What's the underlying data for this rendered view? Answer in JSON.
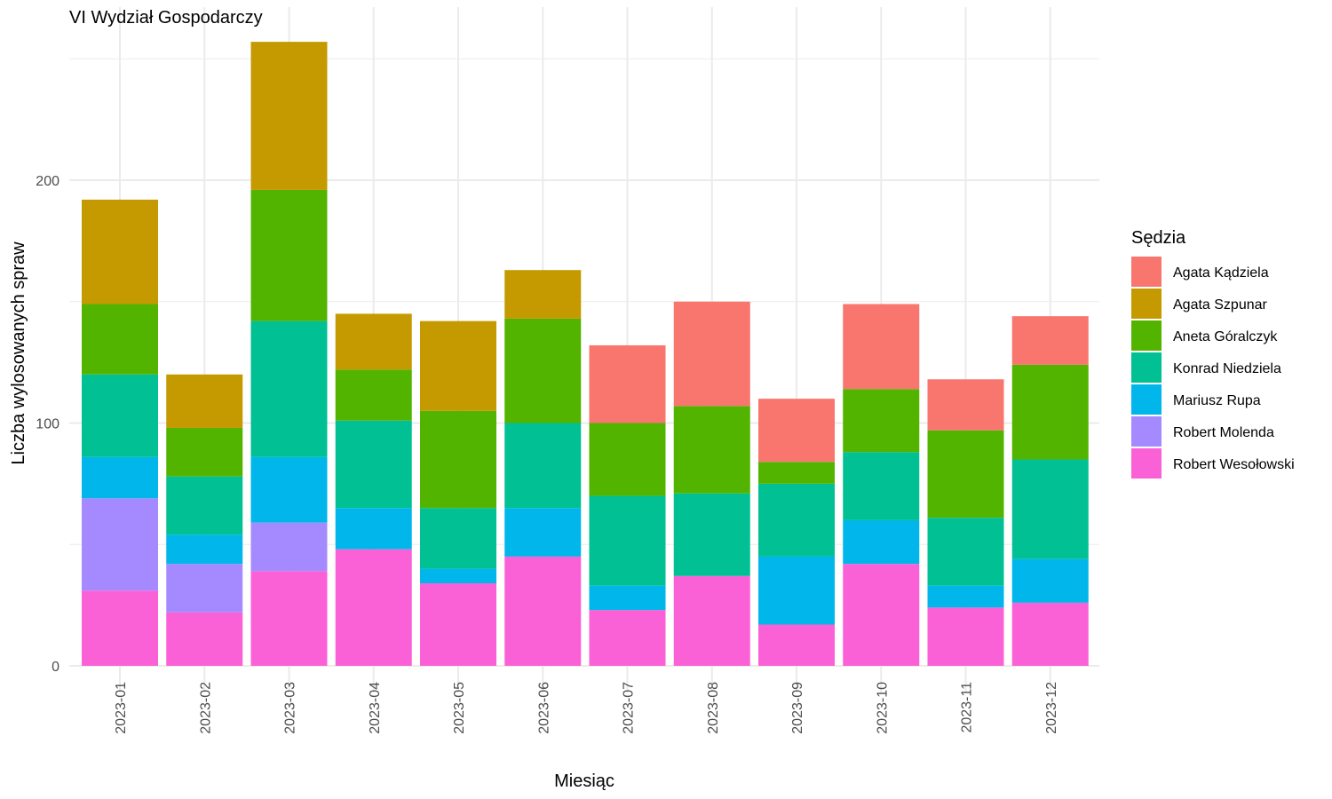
{
  "chart_data": {
    "type": "bar",
    "stacked": true,
    "title": "VI Wydział Gospodarczy",
    "xlabel": "Miesiąc",
    "ylabel": "Liczba wylosowanych spraw",
    "ylim": [
      0,
      260
    ],
    "y_ticks": [
      0,
      100,
      200
    ],
    "grid": true,
    "legend_title": "Sędzia",
    "legend_position": "right",
    "categories": [
      "2023-01",
      "2023-02",
      "2023-03",
      "2023-04",
      "2023-05",
      "2023-06",
      "2023-07",
      "2023-08",
      "2023-09",
      "2023-10",
      "2023-11",
      "2023-12"
    ],
    "series": [
      {
        "name": "Agata Kądziela",
        "color": "#F8766D",
        "values": [
          0,
          0,
          0,
          0,
          0,
          0,
          32,
          43,
          26,
          35,
          21,
          20
        ]
      },
      {
        "name": "Agata Szpunar",
        "color": "#C49A00",
        "values": [
          43,
          22,
          61,
          23,
          37,
          20,
          0,
          0,
          0,
          0,
          0,
          0
        ]
      },
      {
        "name": "Aneta Góralczyk",
        "color": "#53B400",
        "values": [
          29,
          20,
          54,
          21,
          40,
          43,
          30,
          36,
          9,
          26,
          36,
          39
        ]
      },
      {
        "name": "Konrad Niedziela",
        "color": "#00C094",
        "values": [
          34,
          24,
          56,
          36,
          25,
          35,
          37,
          34,
          30,
          28,
          28,
          41
        ]
      },
      {
        "name": "Mariusz Rupa",
        "color": "#00B6EB",
        "values": [
          17,
          12,
          27,
          17,
          6,
          20,
          10,
          0,
          28,
          18,
          9,
          18
        ]
      },
      {
        "name": "Robert Molenda",
        "color": "#A58AFF",
        "values": [
          38,
          20,
          20,
          0,
          0,
          0,
          0,
          0,
          0,
          0,
          0,
          0
        ]
      },
      {
        "name": "Robert Wesołowski",
        "color": "#FB61D7",
        "values": [
          31,
          22,
          39,
          48,
          34,
          45,
          23,
          37,
          17,
          42,
          24,
          26
        ]
      }
    ]
  }
}
